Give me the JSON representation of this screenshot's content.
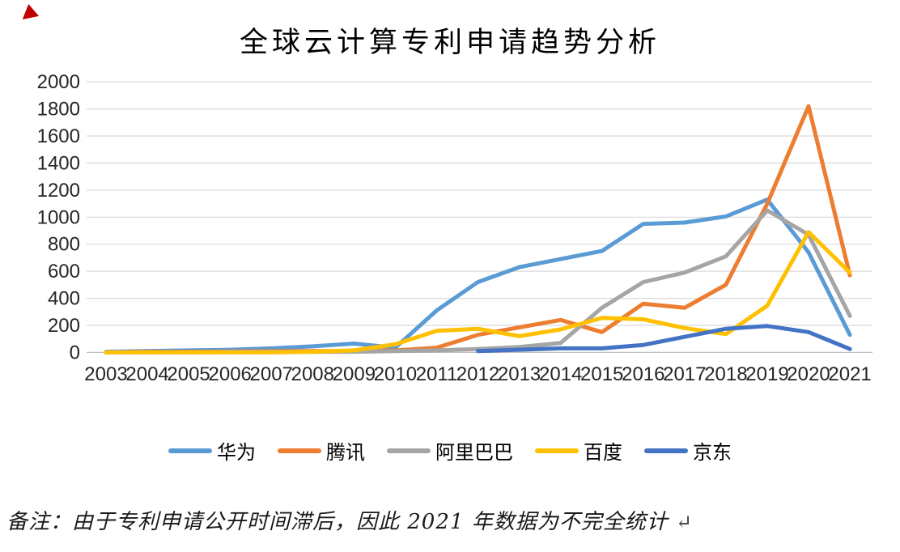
{
  "chart_data": {
    "type": "line",
    "title": "全球云计算专利申请趋势分析",
    "categories": [
      "2003",
      "2004",
      "2005",
      "2006",
      "2007",
      "2008",
      "2009",
      "2010",
      "2011",
      "2012",
      "2013",
      "2014",
      "2015",
      "2016",
      "2017",
      "2018",
      "2019",
      "2020",
      "2021"
    ],
    "series": [
      {
        "name": "华为",
        "color": "#5B9BD5",
        "values": [
          5,
          10,
          15,
          20,
          30,
          45,
          65,
          35,
          310,
          520,
          630,
          690,
          750,
          950,
          960,
          1005,
          1130,
          740,
          130
        ]
      },
      {
        "name": "腾讯",
        "color": "#ED7D31",
        "values": [
          0,
          5,
          5,
          8,
          10,
          10,
          10,
          15,
          35,
          130,
          185,
          240,
          150,
          360,
          330,
          500,
          1100,
          1820,
          570
        ]
      },
      {
        "name": "阿里巴巴",
        "color": "#A5A5A5",
        "values": [
          0,
          0,
          0,
          5,
          5,
          5,
          5,
          10,
          15,
          25,
          40,
          70,
          330,
          520,
          590,
          710,
          1050,
          870,
          270
        ]
      },
      {
        "name": "百度",
        "color": "#FFC000",
        "values": [
          0,
          0,
          0,
          0,
          0,
          5,
          15,
          60,
          160,
          175,
          120,
          170,
          255,
          245,
          180,
          135,
          345,
          890,
          590
        ]
      },
      {
        "name": "京东",
        "color": "#4472C4",
        "values": [
          null,
          null,
          null,
          null,
          null,
          null,
          null,
          null,
          null,
          10,
          20,
          30,
          30,
          55,
          115,
          175,
          195,
          150,
          25
        ]
      }
    ],
    "xlabel": "",
    "ylabel": "",
    "ylim": [
      0,
      2000
    ],
    "yticks": [
      0,
      200,
      400,
      600,
      800,
      1000,
      1200,
      1400,
      1600,
      1800,
      2000
    ],
    "grid": true,
    "legend_position": "bottom"
  },
  "note": {
    "text": "备注：由于专利申请公开时间滞后，因此 2021 年数据为不完全统计 ",
    "return_mark": "↵"
  },
  "decor": {
    "corner_mark_color": "#C00000"
  }
}
